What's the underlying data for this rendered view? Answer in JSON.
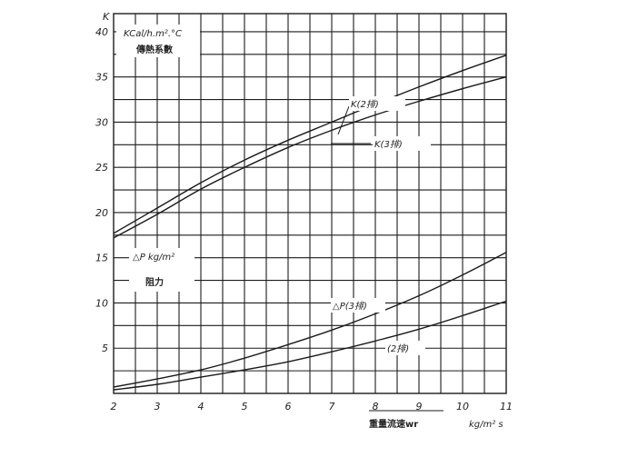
{
  "chart_data": {
    "type": "line",
    "x_ticks": [
      "2",
      "3",
      "4",
      "5",
      "6",
      "7",
      "8",
      "9",
      "10",
      "11"
    ],
    "y_ticks": [
      "5",
      "10",
      "15",
      "20",
      "25",
      "30",
      "35",
      "40"
    ],
    "y_axis_symbol": "K",
    "y_unit_top": "KCal/h.m².°C",
    "y_title_top": "傳熱系數",
    "y_unit_lower": "△P kg/m²",
    "y_title_lower": "阻力",
    "x_title": "重量流速wr",
    "x_unit": "kg/m² s",
    "xlim": [
      2,
      11
    ],
    "ylim": [
      0,
      42
    ],
    "grid": true,
    "series": [
      {
        "name": "K(2排)",
        "x": [
          2,
          3,
          4,
          5,
          6,
          7,
          8,
          9,
          10,
          11
        ],
        "y": [
          17.7,
          20.5,
          23.3,
          25.8,
          28.0,
          30.0,
          32.0,
          33.9,
          35.7,
          37.4
        ]
      },
      {
        "name": "K(3排)",
        "x": [
          2,
          3,
          4,
          5,
          6,
          7,
          8,
          9,
          10,
          11
        ],
        "y": [
          17.2,
          19.8,
          22.6,
          25.0,
          27.2,
          29.1,
          30.8,
          32.3,
          33.7,
          35.0
        ]
      },
      {
        "name": "△P(3排)",
        "x": [
          2,
          3,
          4,
          5,
          6,
          7,
          8,
          9,
          10,
          11
        ],
        "y": [
          0.7,
          1.6,
          2.6,
          3.9,
          5.4,
          7.0,
          8.8,
          10.8,
          13.1,
          15.6
        ]
      },
      {
        "name": "(2排)",
        "x": [
          2,
          3,
          4,
          5,
          6,
          7,
          8,
          9,
          10,
          11
        ],
        "y": [
          0.4,
          1.0,
          1.8,
          2.6,
          3.5,
          4.6,
          5.8,
          7.1,
          8.6,
          10.2
        ]
      }
    ]
  }
}
